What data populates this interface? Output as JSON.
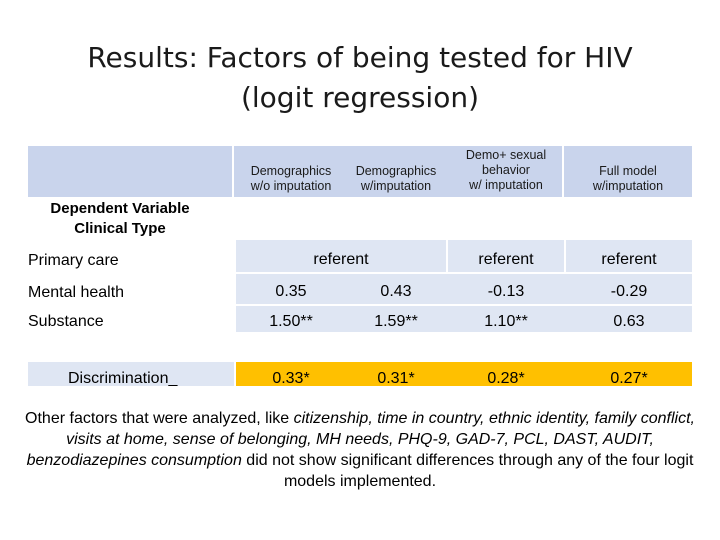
{
  "title_line1": "Results: Factors of being tested for HIV",
  "title_line2": "(logit regression)",
  "columns": [
    {
      "line1": "Demographics",
      "line2": "w/o imputation"
    },
    {
      "line1": "Demographics",
      "line2": "w/imputation"
    },
    {
      "line1": "Demo+ sexual",
      "line2": "behavior",
      "line3": "w/ imputation"
    },
    {
      "line1": "Full model",
      "line2": "w/imputation"
    }
  ],
  "dependent_variable": "Dependent Variable",
  "clinical_type": "Clinical Type",
  "rows": {
    "primary_care": {
      "label": "Primary care",
      "merged": "referent",
      "c3": "referent",
      "c4": "referent"
    },
    "mental_health": {
      "label": "Mental health",
      "c1": "0.35",
      "c2": "0.43",
      "c3": "-0.13",
      "c4": "-0.29"
    },
    "substance": {
      "label": "Substance",
      "c1": "1.50**",
      "c2": "1.59**",
      "c3": "1.10**",
      "c4": "0.63"
    },
    "discrimination": {
      "label": "Discrimination_",
      "c1": "0.33*",
      "c2": "0.31*",
      "c3": "0.28*",
      "c4": "0.27*"
    }
  },
  "note": {
    "p1": "Other factors that were analyzed, like ",
    "i1": "citizenship, time in country, ethnic identity,",
    "i2": "family conflict, visits at home, sense of belonging, MH needs, PHQ-9, GAD-7, PCL, DAST, AUDIT, benzodiazepines consumption",
    "p2": " did not show significant differences through any of the four logit models implemented."
  },
  "colors": {
    "header_blue": "#c9d4ec",
    "row_blue": "#dfe6f3",
    "highlight": "#ffc000"
  }
}
